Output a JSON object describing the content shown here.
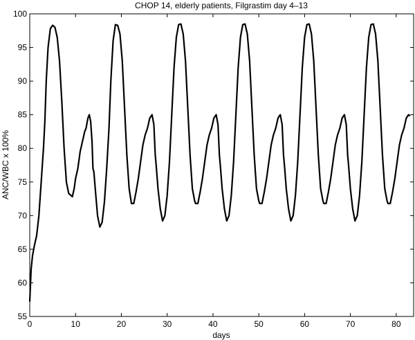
{
  "chart_data": {
    "type": "line",
    "title": "CHOP 14, elderly patients, Filgrastim day 4–13",
    "xlabel": "days",
    "ylabel": "ANC/WBC x 100%",
    "color": "#000000",
    "xlim": [
      0,
      83.8
    ],
    "xticks": [
      0,
      10,
      20,
      30,
      40,
      50,
      60,
      70,
      80
    ],
    "ylim": [
      55,
      100
    ],
    "yticks": [
      55,
      60,
      65,
      70,
      75,
      80,
      85,
      90,
      95,
      100
    ],
    "x": [
      0,
      0.3,
      0.6,
      1,
      1.5,
      2,
      2.5,
      3,
      3.3,
      3.6,
      4,
      4.5,
      5,
      5.5,
      6,
      6.5,
      7,
      7.5,
      8,
      8.5,
      9,
      9.3,
      9.7,
      10,
      10.5,
      11,
      11.5,
      12,
      12.3,
      12.7,
      13,
      13.3,
      13.6,
      13.8,
      14,
      14.3,
      14.8,
      15.3,
      15.8,
      16.3,
      16.8,
      17.3,
      17.7,
      18.2,
      18.7,
      19.2,
      19.7,
      20.2,
      20.7,
      21.2,
      21.7,
      22.2,
      22.7,
      23.2,
      23.7,
      24.2,
      24.7,
      25.2,
      25.7,
      26.2,
      26.7,
      27.1,
      27.4,
      27.6,
      28,
      28.5,
      29,
      29.5,
      30,
      30.5,
      31,
      31.5,
      32,
      32.5,
      33,
      33.5,
      34,
      34.5,
      35,
      35.5,
      36,
      36.2,
      36.7,
      37.2,
      37.7,
      38.2,
      38.7,
      39.2,
      39.7,
      40.2,
      40.7,
      41.1,
      41.4,
      41.6,
      42,
      42.5,
      43,
      43.5,
      44,
      44.5,
      45,
      45.5,
      46,
      46.5,
      47,
      47.5,
      48,
      48.5,
      49,
      49.5,
      50,
      50.2,
      50.7,
      51.2,
      51.7,
      52.2,
      52.7,
      53.2,
      53.7,
      54.2,
      54.7,
      55.1,
      55.4,
      55.6,
      56,
      56.5,
      57,
      57.5,
      58,
      58.5,
      59,
      59.5,
      60,
      60.5,
      61,
      61.5,
      62,
      62.5,
      63,
      63.5,
      64,
      64.2,
      64.7,
      65.2,
      65.7,
      66.2,
      66.7,
      67.2,
      67.7,
      68.2,
      68.7,
      69.1,
      69.4,
      69.6,
      70,
      70.5,
      71,
      71.5,
      72,
      72.5,
      73,
      73.5,
      74,
      74.5,
      75,
      75.5,
      76,
      76.5,
      77,
      77.5,
      78,
      78.2,
      78.7,
      79.2,
      79.7,
      80.2,
      80.7,
      81.2,
      81.7,
      82.2,
      82.7,
      83
    ],
    "values": [
      57.2,
      62,
      64,
      65.5,
      67,
      70,
      75,
      80,
      84,
      90,
      95,
      97.8,
      98.3,
      98,
      96.5,
      93,
      87,
      80,
      75,
      73.3,
      73,
      72.8,
      74,
      75.5,
      77,
      79.5,
      81,
      82.5,
      83,
      84.5,
      85,
      84,
      81,
      77,
      76.5,
      74,
      70,
      68.3,
      69,
      72,
      77,
      83,
      90,
      96,
      98.4,
      98.3,
      97,
      93,
      86,
      79,
      74,
      71.8,
      71.8,
      73.5,
      75.5,
      78,
      80.5,
      82,
      83,
      84.5,
      85,
      83.5,
      79,
      77.5,
      74,
      71,
      69.2,
      70,
      73,
      78,
      85,
      92,
      96.5,
      98.4,
      98.5,
      97,
      93,
      86,
      79,
      74,
      72.2,
      71.8,
      71.8,
      73.5,
      75.5,
      78,
      80.5,
      82,
      83,
      84.5,
      85,
      83.5,
      79,
      77.5,
      74,
      71,
      69.2,
      70,
      73,
      78,
      85,
      92,
      96.5,
      98.4,
      98.5,
      97,
      93,
      86,
      79,
      74,
      72.2,
      71.8,
      71.8,
      73.5,
      75.5,
      78,
      80.5,
      82,
      83,
      84.5,
      85,
      83.5,
      79,
      77.5,
      74,
      71,
      69.2,
      70,
      73,
      78,
      85,
      92,
      96.5,
      98.4,
      98.5,
      97,
      93,
      86,
      79,
      74,
      72.2,
      71.8,
      71.8,
      73.5,
      75.5,
      78,
      80.5,
      82,
      83,
      84.5,
      85,
      83.5,
      79,
      77.5,
      74,
      71,
      69.2,
      70,
      73,
      78,
      85,
      92,
      96.5,
      98.4,
      98.5,
      97,
      93,
      86,
      79,
      74,
      72.2,
      71.8,
      71.8,
      73.5,
      75.5,
      78,
      80.5,
      82,
      83,
      84.5,
      85,
      84.8
    ]
  }
}
